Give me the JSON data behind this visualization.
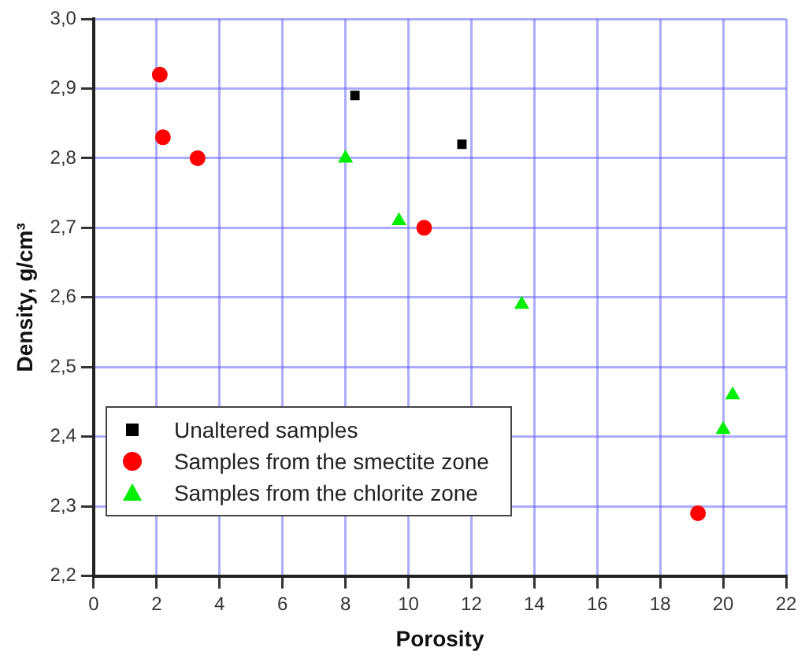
{
  "chart_data": {
    "type": "scatter",
    "xlabel": "Porosity",
    "ylabel": "Density, g/cm³",
    "xlim": [
      0,
      22
    ],
    "xticks": [
      0,
      2,
      4,
      6,
      8,
      10,
      12,
      14,
      16,
      18,
      20,
      22
    ],
    "ylim": [
      2.2,
      3.0
    ],
    "yticks": [
      {
        "value": 2.2,
        "label": "2,2"
      },
      {
        "value": 2.3,
        "label": "2,3"
      },
      {
        "value": 2.4,
        "label": "2,4"
      },
      {
        "value": 2.5,
        "label": "2,5"
      },
      {
        "value": 2.6,
        "label": "2,6"
      },
      {
        "value": 2.7,
        "label": "2,7"
      },
      {
        "value": 2.8,
        "label": "2,8"
      },
      {
        "value": 2.9,
        "label": "2,9"
      },
      {
        "value": 3.0,
        "label": "3,0"
      }
    ],
    "grid": true,
    "legend": "bottom left",
    "series": [
      {
        "name": "Unaltered samples",
        "color": "#000000",
        "marker": "square",
        "x": [
          8.3,
          11.7
        ],
        "values": [
          2.89,
          2.82
        ]
      },
      {
        "name": "Samples from the smectite zone",
        "color": "#ff0000",
        "marker": "circle",
        "x": [
          2.1,
          2.2,
          3.3,
          10.5,
          19.2
        ],
        "values": [
          2.92,
          2.83,
          2.8,
          2.7,
          2.29
        ]
      },
      {
        "name": "Samples from the chlorite zone",
        "color": "#00ee00",
        "marker": "triangle",
        "x": [
          8.0,
          9.7,
          13.6,
          20.3,
          20.0
        ],
        "values": [
          2.8,
          2.71,
          2.59,
          2.46,
          2.41
        ]
      }
    ]
  }
}
